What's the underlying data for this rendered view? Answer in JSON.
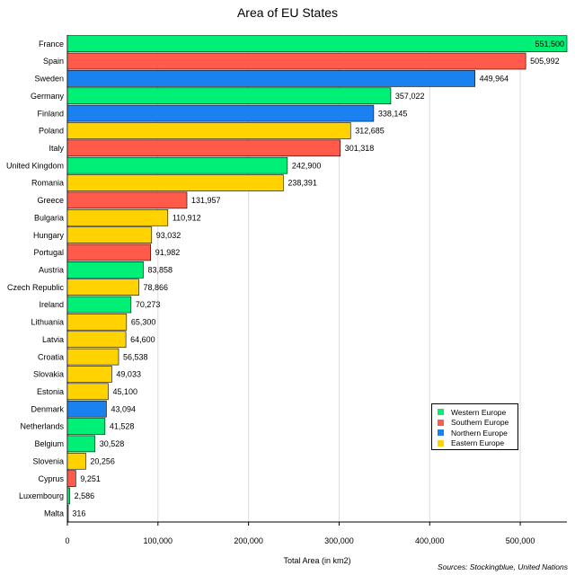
{
  "chart_data": {
    "type": "bar",
    "orientation": "horizontal",
    "title": "Area of EU States",
    "xlabel": "Total Area (in km2)",
    "ylabel": "",
    "xlim": [
      0,
      551500
    ],
    "xticks": [
      0,
      100000,
      200000,
      300000,
      400000,
      500000
    ],
    "xtick_labels": [
      "0",
      "100,000",
      "200,000",
      "300,000",
      "400,000",
      "500,000"
    ],
    "grid": true,
    "legend_position": "bottom-right",
    "source": "Sources: Stockingblue, United Nations",
    "legend": [
      {
        "name": "Western Europe",
        "color": "#00f077"
      },
      {
        "name": "Southern Europe",
        "color": "#ff5a4a"
      },
      {
        "name": "Northern Europe",
        "color": "#1a82f0"
      },
      {
        "name": "Eastern Europe",
        "color": "#ffd200"
      }
    ],
    "bars": [
      {
        "label": "France",
        "value": 551500,
        "value_label": "551,500",
        "region": "Western Europe"
      },
      {
        "label": "Spain",
        "value": 505992,
        "value_label": "505,992",
        "region": "Southern Europe"
      },
      {
        "label": "Sweden",
        "value": 449964,
        "value_label": "449,964",
        "region": "Northern Europe"
      },
      {
        "label": "Germany",
        "value": 357022,
        "value_label": "357,022",
        "region": "Western Europe"
      },
      {
        "label": "Finland",
        "value": 338145,
        "value_label": "338,145",
        "region": "Northern Europe"
      },
      {
        "label": "Poland",
        "value": 312685,
        "value_label": "312,685",
        "region": "Eastern Europe"
      },
      {
        "label": "Italy",
        "value": 301318,
        "value_label": "301,318",
        "region": "Southern Europe"
      },
      {
        "label": "United Kingdom",
        "value": 242900,
        "value_label": "242,900",
        "region": "Western Europe"
      },
      {
        "label": "Romania",
        "value": 238391,
        "value_label": "238,391",
        "region": "Eastern Europe"
      },
      {
        "label": "Greece",
        "value": 131957,
        "value_label": "131,957",
        "region": "Southern Europe"
      },
      {
        "label": "Bulgaria",
        "value": 110912,
        "value_label": "110,912",
        "region": "Eastern Europe"
      },
      {
        "label": "Hungary",
        "value": 93032,
        "value_label": "93,032",
        "region": "Eastern Europe"
      },
      {
        "label": "Portugal",
        "value": 91982,
        "value_label": "91,982",
        "region": "Southern Europe"
      },
      {
        "label": "Austria",
        "value": 83858,
        "value_label": "83,858",
        "region": "Western Europe"
      },
      {
        "label": "Czech Republic",
        "value": 78866,
        "value_label": "78,866",
        "region": "Eastern Europe"
      },
      {
        "label": "Ireland",
        "value": 70273,
        "value_label": "70,273",
        "region": "Western Europe"
      },
      {
        "label": "Lithuania",
        "value": 65300,
        "value_label": "65,300",
        "region": "Eastern Europe"
      },
      {
        "label": "Latvia",
        "value": 64600,
        "value_label": "64,600",
        "region": "Eastern Europe"
      },
      {
        "label": "Croatia",
        "value": 56538,
        "value_label": "56,538",
        "region": "Eastern Europe"
      },
      {
        "label": "Slovakia",
        "value": 49033,
        "value_label": "49,033",
        "region": "Eastern Europe"
      },
      {
        "label": "Estonia",
        "value": 45100,
        "value_label": "45,100",
        "region": "Eastern Europe"
      },
      {
        "label": "Denmark",
        "value": 43094,
        "value_label": "43,094",
        "region": "Northern Europe"
      },
      {
        "label": "Netherlands",
        "value": 41528,
        "value_label": "41,528",
        "region": "Western Europe"
      },
      {
        "label": "Belgium",
        "value": 30528,
        "value_label": "30,528",
        "region": "Western Europe"
      },
      {
        "label": "Slovenia",
        "value": 20256,
        "value_label": "20,256",
        "region": "Eastern Europe"
      },
      {
        "label": "Cyprus",
        "value": 9251,
        "value_label": "9,251",
        "region": "Southern Europe"
      },
      {
        "label": "Luxembourg",
        "value": 2586,
        "value_label": "2,586",
        "region": "Western Europe"
      },
      {
        "label": "Malta",
        "value": 316,
        "value_label": "316",
        "region": "Southern Europe"
      }
    ]
  }
}
